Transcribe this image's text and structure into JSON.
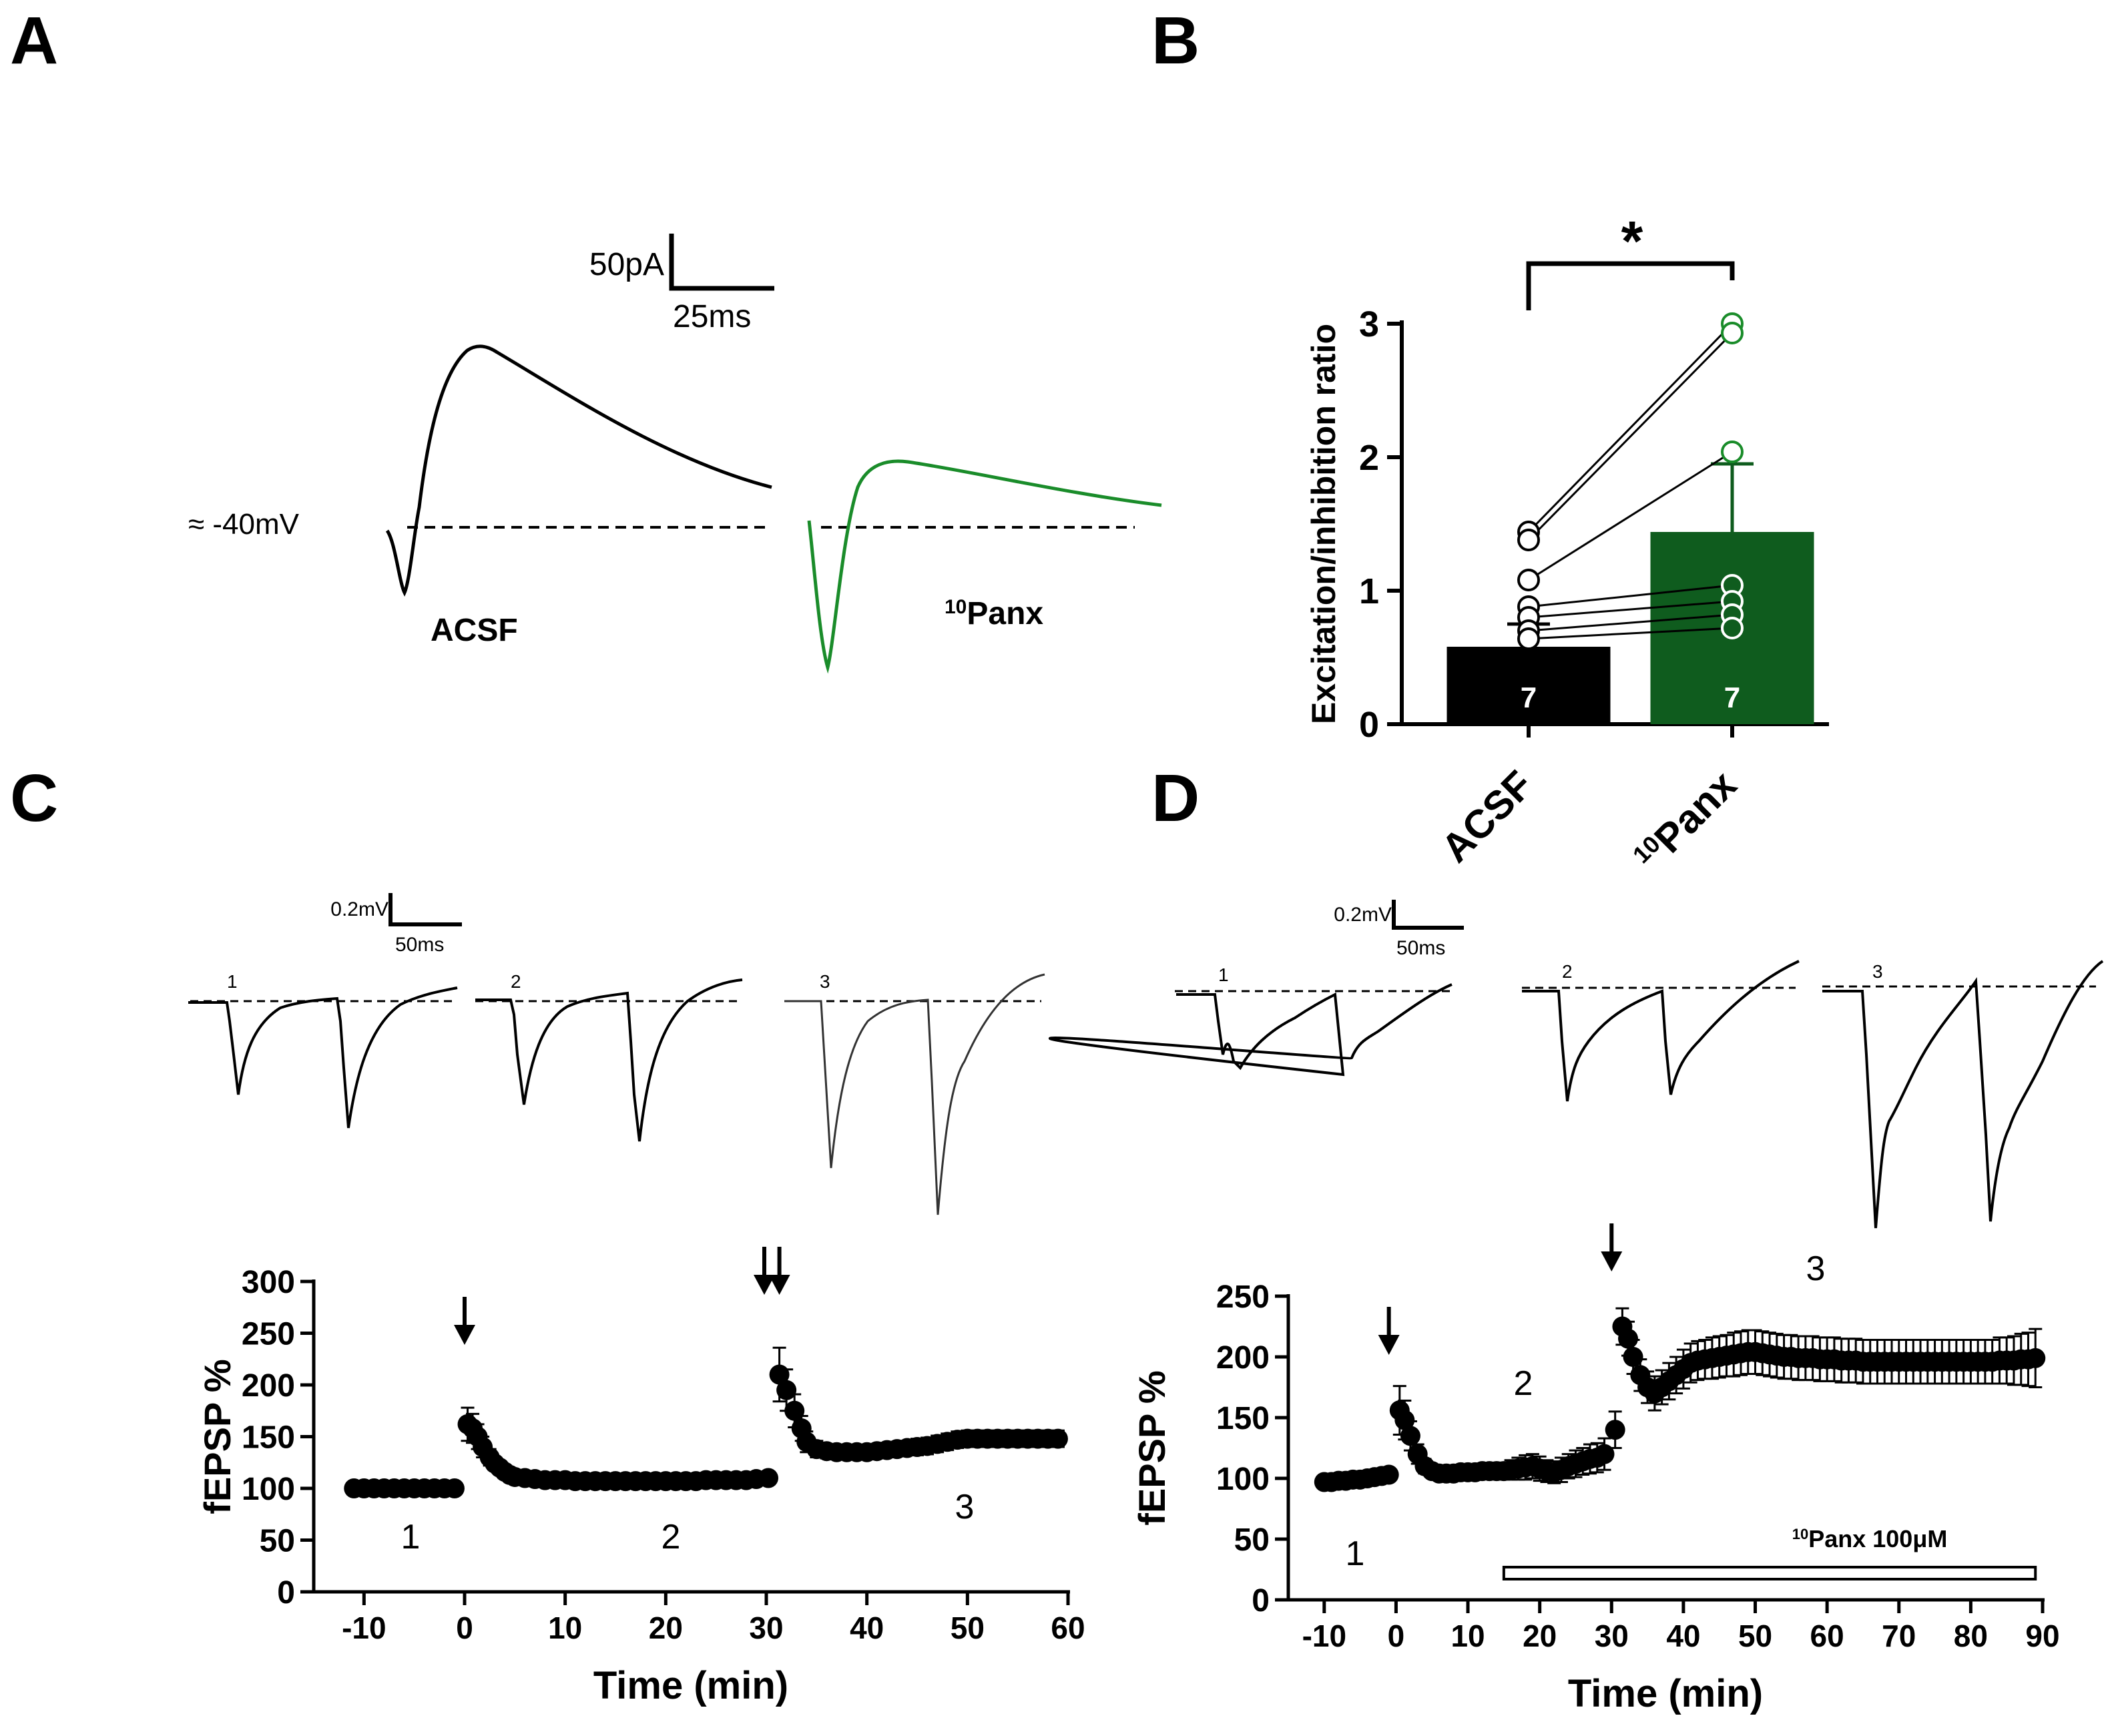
{
  "panels": {
    "a": {
      "letter": "A"
    },
    "b": {
      "letter": "B"
    },
    "c": {
      "letter": "C"
    },
    "d": {
      "letter": "D"
    }
  },
  "panel_a": {
    "scale_current": "50pA",
    "scale_time": "25ms",
    "holding_label": "≈ -40mV",
    "trace_labels": [
      "ACSF",
      "Panx"
    ],
    "panx_superscript": "10",
    "colors": {
      "acsf": "#000000",
      "panx": "#1a8c2a"
    }
  },
  "chart_data": [
    {
      "id": "B",
      "type": "bar",
      "title": "",
      "categories": [
        "ACSF",
        "Panx"
      ],
      "category_superscripts": [
        "",
        "10"
      ],
      "values": [
        0.58,
        1.44
      ],
      "errors": [
        0.17,
        0.51
      ],
      "n_labels": [
        "7",
        "7"
      ],
      "significance": "*",
      "ylabel": "Excitation/inhibition ratio",
      "ylim": [
        0,
        3
      ],
      "yticks": [
        "0",
        "1",
        "2",
        "3"
      ],
      "paired_points": {
        "ACSF": [
          1.44,
          1.38,
          1.08,
          0.88,
          0.8,
          0.7,
          0.64
        ],
        "Panx": [
          3.0,
          2.93,
          2.04,
          1.04,
          0.92,
          0.82,
          0.72
        ]
      },
      "colors": {
        "ACSF": "#000000",
        "Panx": "#0f5c1e"
      }
    },
    {
      "id": "C",
      "type": "scatter",
      "title": "",
      "xlabel": "Time (min)",
      "ylabel": "fEPSP %",
      "xlim": [
        -15,
        60
      ],
      "ylim": [
        0,
        300
      ],
      "xticks": [
        "-10",
        "0",
        "10",
        "20",
        "30",
        "40",
        "50",
        "60"
      ],
      "yticks": [
        "0",
        "50",
        "100",
        "150",
        "200",
        "250",
        "300"
      ],
      "phase_labels": [
        "1",
        "2",
        "3"
      ],
      "arrow_times": [
        0,
        29.8,
        31.3
      ],
      "x": [
        -11,
        -10,
        -9,
        -8,
        -7,
        -6,
        -5,
        -4,
        -3,
        -2,
        -1,
        0.3,
        0.8,
        1.3,
        1.8,
        2.5,
        3.0,
        3.5,
        4.0,
        4.5,
        5,
        6,
        7,
        8,
        9,
        10,
        11,
        12,
        13,
        14,
        15,
        16,
        17,
        18,
        19,
        20,
        21,
        22,
        23,
        24,
        25,
        26,
        27,
        28,
        29,
        30.2,
        31.3,
        32,
        32.8,
        33.5,
        34,
        35,
        36,
        37,
        38,
        39,
        40,
        41,
        42,
        43,
        44,
        45,
        46,
        47,
        48,
        49,
        50,
        51,
        52,
        53,
        54,
        55,
        56,
        57,
        58,
        59
      ],
      "values": [
        100,
        100,
        100,
        100,
        100,
        100,
        100,
        100,
        100,
        100,
        100,
        162,
        158,
        150,
        140,
        130,
        124,
        120,
        116,
        113,
        111,
        110,
        109,
        108,
        108,
        108,
        107,
        107,
        107,
        107,
        107,
        107,
        107,
        107,
        107,
        107,
        107,
        107,
        107,
        108,
        108,
        108,
        108,
        108,
        109,
        110,
        210,
        195,
        175,
        158,
        145,
        138,
        136,
        135,
        135,
        135,
        135,
        136,
        137,
        138,
        139,
        140,
        141,
        143,
        145,
        147,
        148,
        148,
        148,
        148,
        148,
        148,
        148,
        148,
        148,
        148
      ],
      "errors": [
        2,
        2,
        2,
        2,
        2,
        2,
        2,
        2,
        2,
        2,
        2,
        16,
        14,
        12,
        10,
        8,
        6,
        5,
        4,
        4,
        3,
        3,
        3,
        3,
        3,
        3,
        3,
        3,
        3,
        3,
        3,
        3,
        3,
        3,
        3,
        3,
        3,
        3,
        3,
        3,
        3,
        3,
        3,
        3,
        3,
        4,
        26,
        20,
        16,
        12,
        10,
        8,
        7,
        7,
        7,
        7,
        7,
        7,
        7,
        7,
        7,
        8,
        8,
        8,
        8,
        8,
        8,
        8,
        8,
        8,
        8,
        8,
        8,
        8,
        8,
        8
      ]
    },
    {
      "id": "D",
      "type": "scatter",
      "title": "",
      "xlabel": "Time (min)",
      "ylabel": "fEPSP %",
      "xlim": [
        -15,
        90
      ],
      "ylim": [
        0,
        250
      ],
      "xticks": [
        "-10",
        "0",
        "10",
        "20",
        "30",
        "40",
        "50",
        "60",
        "70",
        "80",
        "90"
      ],
      "yticks": [
        "0",
        "50",
        "100",
        "150",
        "200",
        "250"
      ],
      "phase_labels": [
        "1",
        "2",
        "3"
      ],
      "arrow_times": [
        -1,
        30
      ],
      "drug_bar": {
        "label": "Panx 100μM",
        "superscript": "10",
        "start": 15,
        "end": 89
      },
      "x": [
        -10,
        -9,
        -8,
        -7,
        -6,
        -5,
        -4,
        -3,
        -2,
        -1,
        0.5,
        1.2,
        2,
        3,
        4,
        5,
        6,
        7,
        8,
        9,
        10,
        11,
        12,
        13,
        14,
        15,
        16,
        17,
        18,
        19,
        20,
        21,
        22,
        23,
        24,
        25,
        26,
        27,
        28,
        29,
        30.5,
        31.5,
        32.3,
        33,
        34,
        35,
        36,
        37,
        38,
        39,
        40,
        41,
        42,
        43,
        44,
        45,
        46,
        47,
        48,
        49,
        50,
        51,
        52,
        53,
        54,
        55,
        56,
        57,
        58,
        59,
        60,
        61,
        62,
        63,
        64,
        65,
        66,
        67,
        68,
        69,
        70,
        71,
        72,
        73,
        74,
        75,
        76,
        77,
        78,
        79,
        80,
        81,
        82,
        83,
        84,
        85,
        86,
        87,
        88,
        89
      ],
      "values": [
        97,
        97,
        98,
        98,
        99,
        99,
        100,
        101,
        102,
        103,
        156,
        148,
        135,
        120,
        110,
        106,
        104,
        104,
        104,
        105,
        105,
        105,
        106,
        106,
        106,
        106,
        107,
        108,
        109,
        110,
        108,
        106,
        105,
        107,
        110,
        112,
        114,
        116,
        117,
        120,
        140,
        225,
        215,
        200,
        185,
        175,
        170,
        175,
        180,
        185,
        190,
        195,
        197,
        198,
        199,
        200,
        201,
        202,
        203,
        204,
        204,
        203,
        202,
        201,
        200,
        200,
        199,
        199,
        199,
        198,
        198,
        198,
        197,
        197,
        197,
        196,
        196,
        196,
        196,
        196,
        196,
        196,
        196,
        196,
        196,
        196,
        196,
        196,
        196,
        196,
        196,
        196,
        196,
        196,
        197,
        197,
        197,
        198,
        198,
        199
      ],
      "errors": [
        2,
        2,
        2,
        2,
        2,
        2,
        2,
        2,
        2,
        2,
        20,
        16,
        12,
        8,
        6,
        5,
        5,
        5,
        5,
        6,
        6,
        6,
        6,
        6,
        7,
        7,
        8,
        9,
        10,
        10,
        10,
        9,
        9,
        10,
        10,
        11,
        11,
        12,
        12,
        13,
        15,
        15,
        14,
        14,
        13,
        13,
        14,
        14,
        15,
        15,
        16,
        16,
        16,
        16,
        17,
        17,
        17,
        18,
        18,
        18,
        18,
        18,
        18,
        18,
        18,
        18,
        18,
        18,
        18,
        18,
        18,
        18,
        18,
        18,
        18,
        18,
        18,
        18,
        18,
        18,
        18,
        18,
        18,
        18,
        18,
        18,
        18,
        18,
        18,
        18,
        18,
        18,
        18,
        18,
        19,
        19,
        20,
        21,
        22,
        24
      ]
    }
  ],
  "panel_c_traces": {
    "scale_voltage": "0.2mV",
    "scale_time": "50ms",
    "trace_numbers": [
      "1",
      "2",
      "3"
    ]
  },
  "panel_d_traces": {
    "scale_voltage": "0.2mV",
    "scale_time": "50ms",
    "trace_numbers": [
      "1",
      "2",
      "3"
    ]
  }
}
